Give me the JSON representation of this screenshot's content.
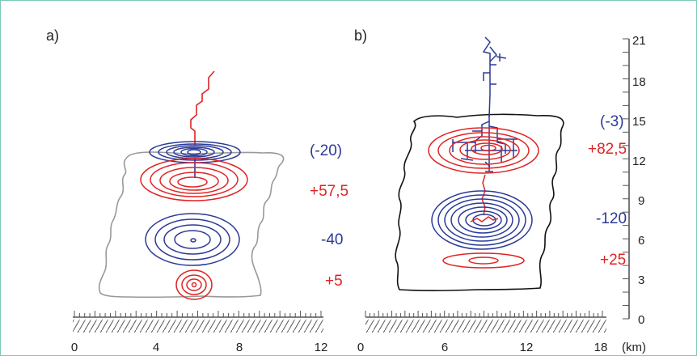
{
  "panels": {
    "a": {
      "label": "a)",
      "annotations": [
        "(-20)",
        "+57,5",
        "-40",
        "+5"
      ],
      "x_ticks": [
        "0",
        "4",
        "8",
        "12"
      ]
    },
    "b": {
      "label": "b)",
      "annotations": [
        "(-3)",
        "+82,5",
        "-120",
        "+25"
      ],
      "x_ticks": [
        "0",
        "6",
        "12",
        "18"
      ],
      "y_ticks": [
        "0",
        "3",
        "6",
        "9",
        "12",
        "15",
        "18",
        "21"
      ]
    }
  },
  "unit_label": "(km)",
  "colors": {
    "positive": "#e02424",
    "negative": "#2b3a96",
    "cloud_a": "#999999",
    "cloud_b": "#111111",
    "frame": "#7cc9b8"
  }
}
